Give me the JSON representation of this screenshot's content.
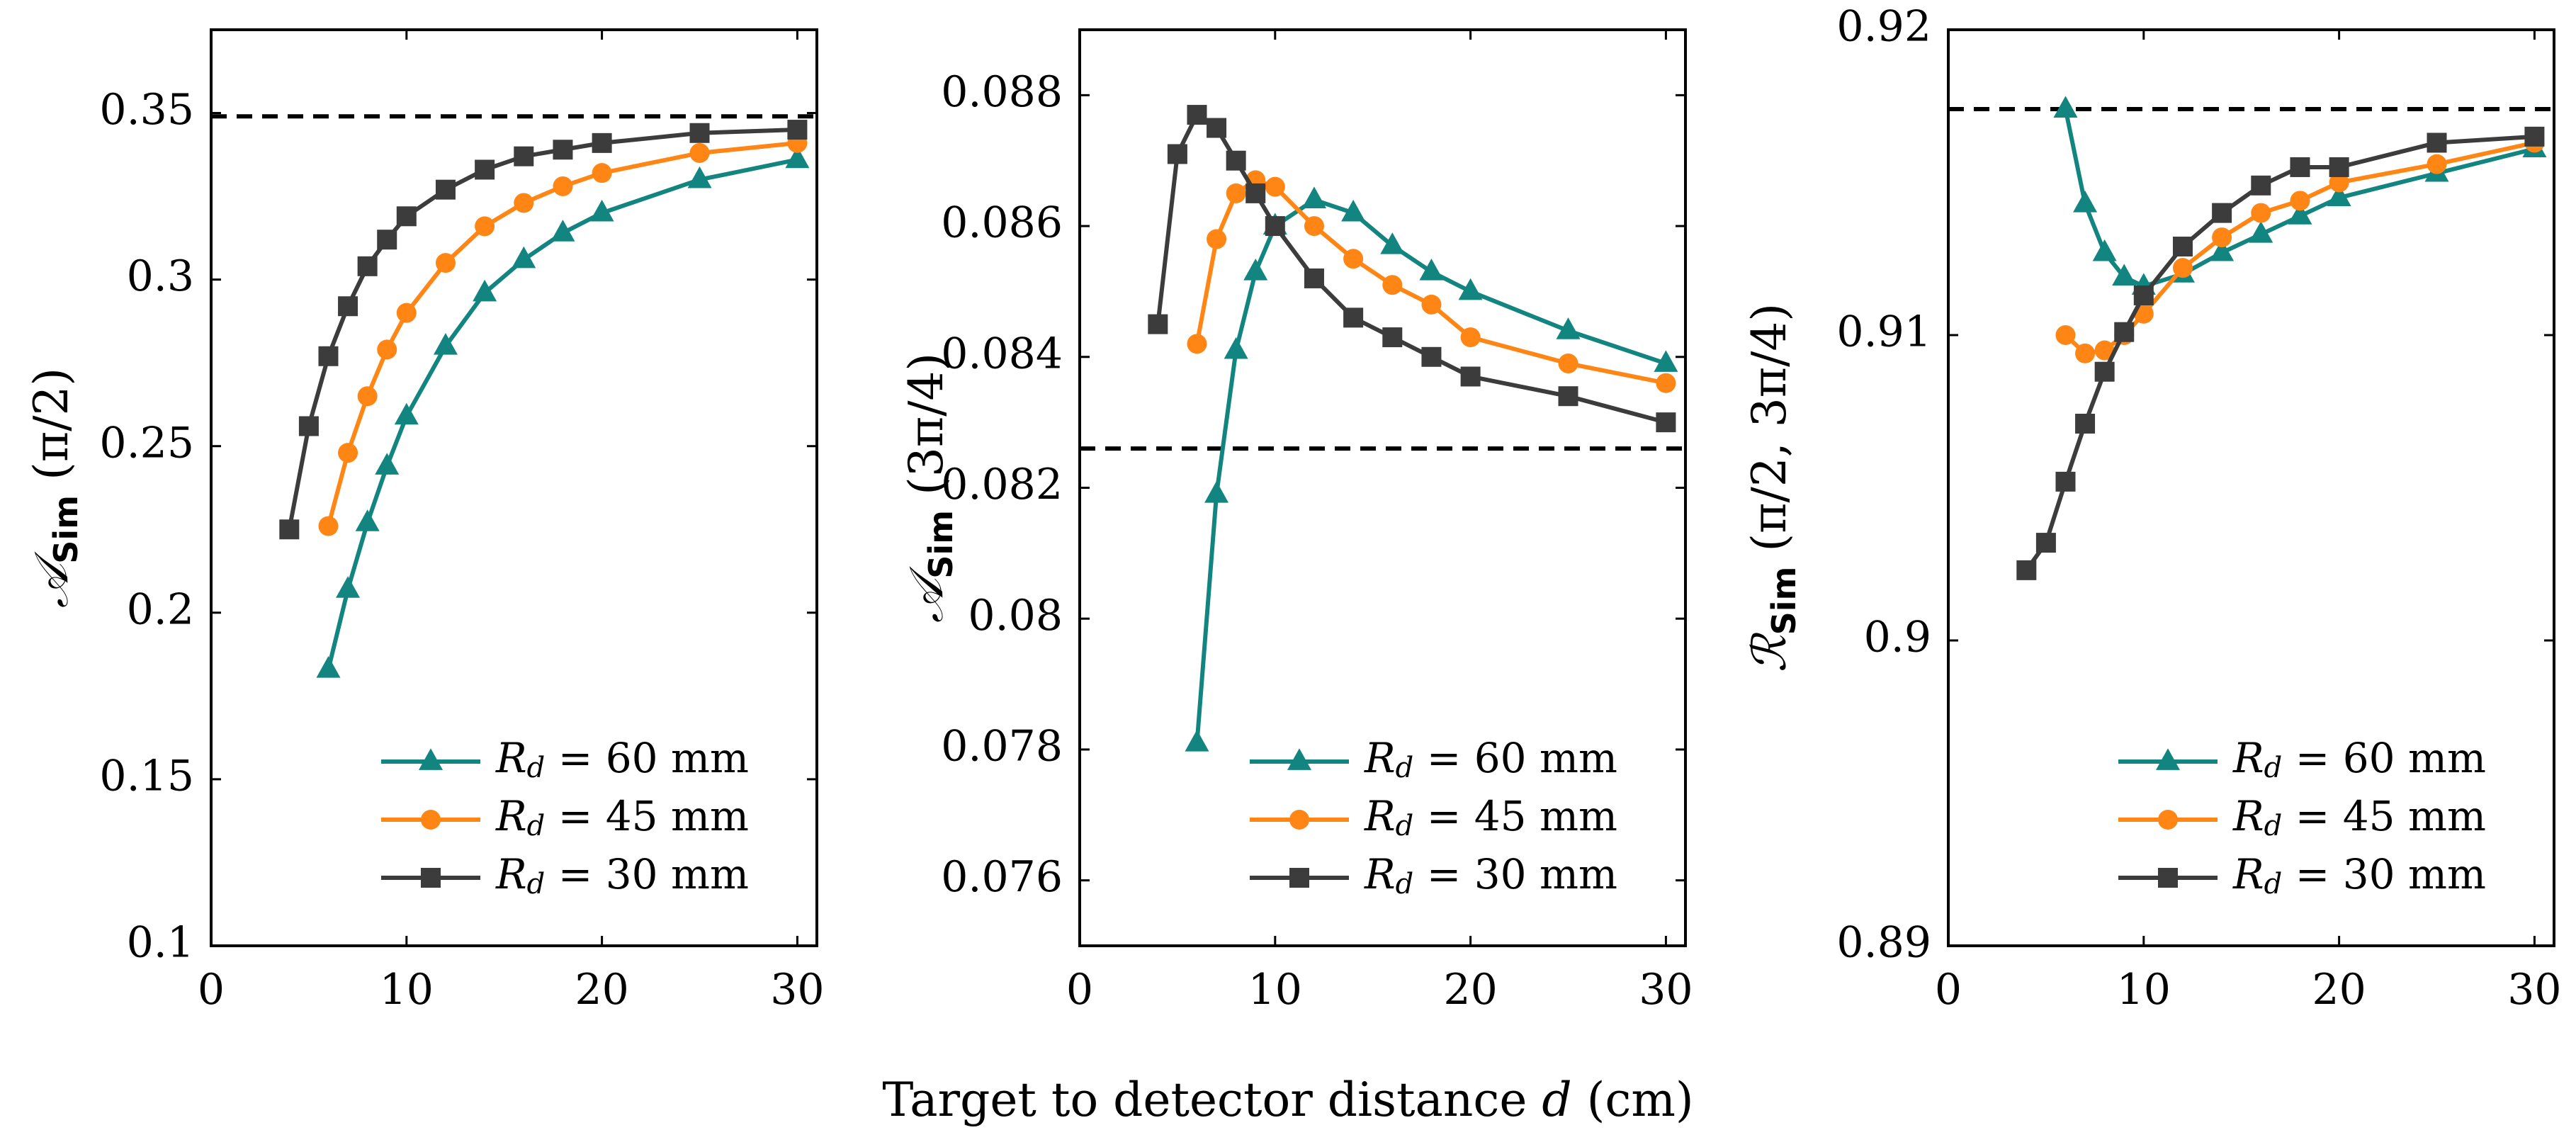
{
  "shared_xlabel": "Target to detector distance d (cm)",
  "colors": {
    "teal": "#138580",
    "orange": "#FF8514",
    "dark": "#3C3C3C",
    "reference": "#000000"
  },
  "chart_data": [
    {
      "type": "line",
      "ylabel": "𝒜Sim (π/2)",
      "xlim": [
        0,
        31
      ],
      "ylim": [
        0.1,
        0.375
      ],
      "xticks": [
        "0",
        "10",
        "20",
        "30"
      ],
      "xtick_values": [
        0,
        10,
        20,
        30
      ],
      "yticks": [
        "0.1",
        "0.15",
        "0.2",
        "0.25",
        "0.3",
        "0.35"
      ],
      "ytick_values": [
        0.1,
        0.15,
        0.2,
        0.25,
        0.3,
        0.35
      ],
      "reference_line": 0.349,
      "legend_position": "bottom-right",
      "series": [
        {
          "name": "Rd = 60 mm",
          "marker": "triangle",
          "color": "#138580",
          "x": [
            6,
            7,
            8,
            9,
            10,
            12,
            14,
            16,
            18,
            20,
            25,
            30
          ],
          "y": [
            0.183,
            0.207,
            0.227,
            0.244,
            0.259,
            0.28,
            0.296,
            0.306,
            0.314,
            0.32,
            0.33,
            0.336
          ]
        },
        {
          "name": "Rd = 45 mm",
          "marker": "circle",
          "color": "#FF8514",
          "x": [
            6,
            7,
            8,
            9,
            10,
            12,
            14,
            16,
            18,
            20,
            25,
            30
          ],
          "y": [
            0.226,
            0.248,
            0.265,
            0.279,
            0.29,
            0.305,
            0.316,
            0.323,
            0.328,
            0.332,
            0.338,
            0.341
          ]
        },
        {
          "name": "Rd = 30 mm",
          "marker": "square",
          "color": "#3C3C3C",
          "x": [
            4,
            5,
            6,
            7,
            8,
            9,
            10,
            12,
            14,
            16,
            18,
            20,
            25,
            30
          ],
          "y": [
            0.225,
            0.256,
            0.277,
            0.292,
            0.304,
            0.312,
            0.319,
            0.327,
            0.333,
            0.337,
            0.339,
            0.341,
            0.344,
            0.345
          ]
        }
      ]
    },
    {
      "type": "line",
      "ylabel": "𝒜Sim (3π/4)",
      "xlim": [
        0,
        31
      ],
      "ylim": [
        0.075,
        0.089
      ],
      "xticks": [
        "0",
        "10",
        "20",
        "30"
      ],
      "xtick_values": [
        0,
        10,
        20,
        30
      ],
      "yticks": [
        "0.076",
        "0.078",
        "0.08",
        "0.082",
        "0.084",
        "0.086",
        "0.088"
      ],
      "ytick_values": [
        0.076,
        0.078,
        0.08,
        0.082,
        0.084,
        0.086,
        0.088
      ],
      "reference_line": 0.0826,
      "legend_position": "bottom-right",
      "series": [
        {
          "name": "Rd = 60 mm",
          "marker": "triangle",
          "color": "#138580",
          "x": [
            6,
            7,
            8,
            9,
            10,
            12,
            14,
            16,
            18,
            20,
            25,
            30
          ],
          "y": [
            0.0781,
            0.0819,
            0.0841,
            0.0853,
            0.086,
            0.0864,
            0.0862,
            0.0857,
            0.0853,
            0.085,
            0.0844,
            0.0839
          ]
        },
        {
          "name": "Rd = 45 mm",
          "marker": "circle",
          "color": "#FF8514",
          "x": [
            6,
            7,
            8,
            9,
            10,
            12,
            14,
            16,
            18,
            20,
            25,
            30
          ],
          "y": [
            0.0842,
            0.0858,
            0.0865,
            0.0867,
            0.0866,
            0.086,
            0.0855,
            0.0851,
            0.0848,
            0.0843,
            0.0839,
            0.0836
          ]
        },
        {
          "name": "Rd = 30 mm",
          "marker": "square",
          "color": "#3C3C3C",
          "x": [
            4,
            5,
            6,
            7,
            8,
            9,
            10,
            12,
            14,
            16,
            18,
            20,
            25,
            30
          ],
          "y": [
            0.0845,
            0.0871,
            0.0877,
            0.0875,
            0.087,
            0.0865,
            0.086,
            0.0852,
            0.0846,
            0.0843,
            0.084,
            0.0837,
            0.0834,
            0.083
          ]
        }
      ]
    },
    {
      "type": "line",
      "ylabel": "ℛSim (π/2, 3π/4)",
      "xlim": [
        0,
        31
      ],
      "ylim": [
        0.89,
        0.92
      ],
      "xticks": [
        "0",
        "10",
        "20",
        "30"
      ],
      "xtick_values": [
        0,
        10,
        20,
        30
      ],
      "yticks": [
        "0.89",
        "0.9",
        "0.91",
        "0.92"
      ],
      "ytick_values": [
        0.89,
        0.9,
        0.91,
        0.92
      ],
      "reference_line": 0.9174,
      "legend_position": "bottom-right",
      "series": [
        {
          "name": "Rd = 60 mm",
          "marker": "triangle",
          "color": "#138580",
          "x": [
            6,
            7,
            8,
            9,
            10,
            12,
            14,
            16,
            18,
            20,
            25,
            30
          ],
          "y": [
            0.9174,
            0.9143,
            0.9127,
            0.9119,
            0.9116,
            0.912,
            0.9127,
            0.9133,
            0.9139,
            0.9145,
            0.9153,
            0.9161
          ]
        },
        {
          "name": "Rd = 45 mm",
          "marker": "circle",
          "color": "#FF8514",
          "x": [
            6,
            7,
            8,
            9,
            10,
            12,
            14,
            16,
            18,
            20,
            25,
            30
          ],
          "y": [
            0.91,
            0.9094,
            0.9095,
            0.91,
            0.9107,
            0.9122,
            0.9132,
            0.914,
            0.9144,
            0.915,
            0.9156,
            0.9163
          ]
        },
        {
          "name": "Rd = 30 mm",
          "marker": "square",
          "color": "#3C3C3C",
          "x": [
            4,
            5,
            6,
            7,
            8,
            9,
            10,
            12,
            14,
            16,
            18,
            20,
            25,
            30
          ],
          "y": [
            0.9023,
            0.9032,
            0.9052,
            0.9071,
            0.9088,
            0.9101,
            0.9113,
            0.9129,
            0.914,
            0.9149,
            0.9155,
            0.9155,
            0.9163,
            0.9165
          ]
        }
      ]
    }
  ]
}
